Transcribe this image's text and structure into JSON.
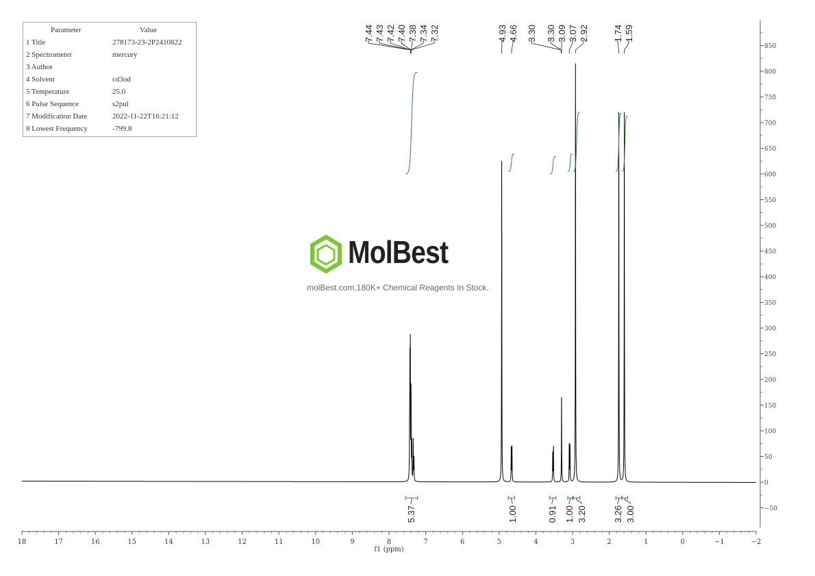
{
  "parameters": {
    "header": [
      "Parameter",
      "Value"
    ],
    "rows": [
      [
        "1 Title",
        "278173-23-2P2410822"
      ],
      [
        "2 Spectrometer",
        "mercury"
      ],
      [
        "3 Author",
        ""
      ],
      [
        "4 Solvent",
        "cd3od"
      ],
      [
        "5 Temperature",
        "25.0"
      ],
      [
        "6 Pulse Sequence",
        "s2pul"
      ],
      [
        "7 Modification Date",
        "2022-11-22T16:21:12"
      ],
      [
        "8 Lowest Frequency",
        "-799.8"
      ]
    ]
  },
  "watermark": {
    "name": "MolBest",
    "tagline": "molBest.com,180K+ Chemical Reagents In Stock.",
    "color": "#7dc832"
  },
  "chart_data": {
    "type": "line",
    "xlabel": "f1 (ppm)",
    "xlim": [
      18,
      -2
    ],
    "ylim": [
      -75,
      895
    ],
    "x_ticks": [
      18,
      17,
      16,
      15,
      14,
      13,
      12,
      11,
      10,
      9,
      8,
      7,
      6,
      5,
      4,
      3,
      2,
      1,
      0,
      -1,
      -2
    ],
    "y_ticks": [
      -50,
      0,
      50,
      100,
      150,
      200,
      250,
      300,
      350,
      400,
      450,
      500,
      550,
      600,
      650,
      700,
      750,
      800,
      850
    ],
    "y_axis_position": "right",
    "grid": false,
    "line_color": "#000000",
    "integral_color": "#2e8b2e",
    "peaks": [
      {
        "ppm": 7.44,
        "height": 95
      },
      {
        "ppm": 7.43,
        "height": 200
      },
      {
        "ppm": 7.42,
        "height": 240
      },
      {
        "ppm": 7.4,
        "height": 170
      },
      {
        "ppm": 7.38,
        "height": 70
      },
      {
        "ppm": 7.34,
        "height": 80
      },
      {
        "ppm": 7.32,
        "height": 45
      },
      {
        "ppm": 4.93,
        "height": 625
      },
      {
        "ppm": 4.67,
        "height": 66
      },
      {
        "ppm": 4.65,
        "height": 68
      },
      {
        "ppm": 3.54,
        "height": 56
      },
      {
        "ppm": 3.52,
        "height": 68
      },
      {
        "ppm": 3.3,
        "height": 165
      },
      {
        "ppm": 3.09,
        "height": 72
      },
      {
        "ppm": 3.07,
        "height": 70
      },
      {
        "ppm": 2.92,
        "height": 815
      },
      {
        "ppm": 1.74,
        "height": 720
      },
      {
        "ppm": 1.59,
        "height": 720
      }
    ],
    "peak_labels": [
      "7.44",
      "7.43",
      "7.42",
      "7.40",
      "7.38",
      "7.34",
      "7.32",
      "4.93",
      "4.66",
      "3.30",
      "3.30",
      "3.09",
      "3.07",
      "2.92",
      "1.74",
      "1.59"
    ],
    "peak_label_targets": [
      7.41,
      7.41,
      7.41,
      7.4,
      7.4,
      7.4,
      7.4,
      4.93,
      4.66,
      3.31,
      3.31,
      3.3,
      3.09,
      2.92,
      1.74,
      1.59
    ],
    "integrals": [
      {
        "from": 7.55,
        "to": 7.22,
        "value": "5.37",
        "curve": [
          600,
          800
        ]
      },
      {
        "from": 4.75,
        "to": 4.58,
        "value": "1.00",
        "curve": [
          605,
          640
        ]
      },
      {
        "from": 3.62,
        "to": 3.45,
        "value": "0.91",
        "curve": [
          600,
          635
        ]
      },
      {
        "from": 3.13,
        "to": 3.0,
        "value": "1.00",
        "curve": [
          605,
          640
        ]
      },
      {
        "from": 2.98,
        "to": 2.8,
        "value": "3.20",
        "curve": [
          605,
          722
        ]
      },
      {
        "from": 1.82,
        "to": 1.66,
        "value": "3.26",
        "curve": [
          605,
          720
        ]
      },
      {
        "from": 1.65,
        "to": 1.5,
        "value": "3.00",
        "curve": [
          605,
          715
        ]
      }
    ]
  }
}
